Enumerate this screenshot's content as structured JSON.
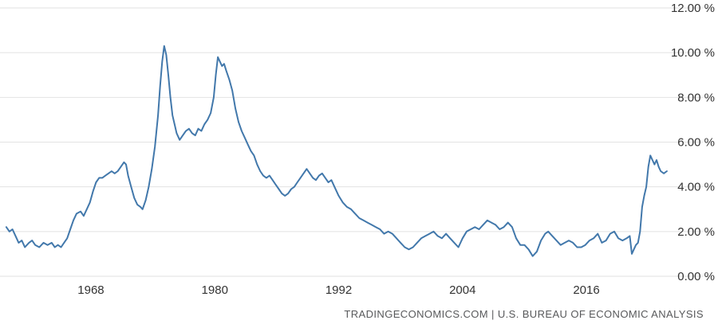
{
  "footer": {
    "source_text": "TRADINGECONOMICS.COM | U.S. BUREAU OF ECONOMIC ANALYSIS"
  },
  "colors": {
    "line": "#4278ab",
    "grid": "#e2e2e2",
    "tick_text": "#333333",
    "footer_text": "#58595b",
    "background": "#ffffff"
  },
  "chart_data": {
    "type": "line",
    "title": "",
    "xlabel": "",
    "ylabel": "",
    "grid": "horizontal",
    "legend": "none",
    "xlim": [
      1959.5,
      2024.5
    ],
    "ylim": [
      0,
      12
    ],
    "xticks": [
      1968,
      1980,
      1992,
      2004,
      2016
    ],
    "yticks": [
      0,
      2,
      4,
      6,
      8,
      10,
      12
    ],
    "ytick_labels": [
      "0.00 %",
      "2.00 %",
      "4.00 %",
      "6.00 %",
      "8.00 %",
      "10.00 %",
      "12.00 %"
    ],
    "series": [
      {
        "name": "value",
        "color": "#4278ab",
        "points": [
          [
            1959.8,
            2.2
          ],
          [
            1960.1,
            2.0
          ],
          [
            1960.4,
            2.1
          ],
          [
            1960.7,
            1.8
          ],
          [
            1961.0,
            1.5
          ],
          [
            1961.3,
            1.6
          ],
          [
            1961.6,
            1.3
          ],
          [
            1962.0,
            1.5
          ],
          [
            1962.3,
            1.6
          ],
          [
            1962.6,
            1.4
          ],
          [
            1963.0,
            1.3
          ],
          [
            1963.4,
            1.5
          ],
          [
            1963.8,
            1.4
          ],
          [
            1964.2,
            1.5
          ],
          [
            1964.5,
            1.3
          ],
          [
            1964.8,
            1.4
          ],
          [
            1965.1,
            1.3
          ],
          [
            1965.4,
            1.5
          ],
          [
            1965.7,
            1.7
          ],
          [
            1966.0,
            2.1
          ],
          [
            1966.3,
            2.5
          ],
          [
            1966.6,
            2.8
          ],
          [
            1967.0,
            2.9
          ],
          [
            1967.3,
            2.7
          ],
          [
            1967.6,
            3.0
          ],
          [
            1967.9,
            3.3
          ],
          [
            1968.2,
            3.8
          ],
          [
            1968.5,
            4.2
          ],
          [
            1968.8,
            4.4
          ],
          [
            1969.1,
            4.4
          ],
          [
            1969.4,
            4.5
          ],
          [
            1969.7,
            4.6
          ],
          [
            1970.0,
            4.7
          ],
          [
            1970.3,
            4.6
          ],
          [
            1970.6,
            4.7
          ],
          [
            1970.9,
            4.9
          ],
          [
            1971.2,
            5.1
          ],
          [
            1971.4,
            5.0
          ],
          [
            1971.6,
            4.5
          ],
          [
            1971.9,
            4.0
          ],
          [
            1972.2,
            3.5
          ],
          [
            1972.5,
            3.2
          ],
          [
            1972.8,
            3.1
          ],
          [
            1973.0,
            3.0
          ],
          [
            1973.3,
            3.4
          ],
          [
            1973.6,
            4.0
          ],
          [
            1973.9,
            4.8
          ],
          [
            1974.2,
            5.8
          ],
          [
            1974.5,
            7.2
          ],
          [
            1974.7,
            8.5
          ],
          [
            1974.9,
            9.6
          ],
          [
            1975.1,
            10.3
          ],
          [
            1975.3,
            9.9
          ],
          [
            1975.5,
            9.0
          ],
          [
            1975.7,
            8.0
          ],
          [
            1975.9,
            7.2
          ],
          [
            1976.1,
            6.8
          ],
          [
            1976.3,
            6.4
          ],
          [
            1976.6,
            6.1
          ],
          [
            1976.9,
            6.3
          ],
          [
            1977.2,
            6.5
          ],
          [
            1977.5,
            6.6
          ],
          [
            1977.8,
            6.4
          ],
          [
            1978.1,
            6.3
          ],
          [
            1978.4,
            6.6
          ],
          [
            1978.7,
            6.5
          ],
          [
            1979.0,
            6.8
          ],
          [
            1979.3,
            7.0
          ],
          [
            1979.6,
            7.3
          ],
          [
            1979.9,
            8.0
          ],
          [
            1980.1,
            9.0
          ],
          [
            1980.3,
            9.8
          ],
          [
            1980.5,
            9.6
          ],
          [
            1980.7,
            9.4
          ],
          [
            1980.9,
            9.5
          ],
          [
            1981.1,
            9.2
          ],
          [
            1981.4,
            8.8
          ],
          [
            1981.7,
            8.3
          ],
          [
            1982.0,
            7.5
          ],
          [
            1982.3,
            6.9
          ],
          [
            1982.6,
            6.5
          ],
          [
            1982.9,
            6.2
          ],
          [
            1983.2,
            5.9
          ],
          [
            1983.5,
            5.6
          ],
          [
            1983.8,
            5.4
          ],
          [
            1984.1,
            5.0
          ],
          [
            1984.4,
            4.7
          ],
          [
            1984.7,
            4.5
          ],
          [
            1985.0,
            4.4
          ],
          [
            1985.3,
            4.5
          ],
          [
            1985.6,
            4.3
          ],
          [
            1985.9,
            4.1
          ],
          [
            1986.2,
            3.9
          ],
          [
            1986.5,
            3.7
          ],
          [
            1986.8,
            3.6
          ],
          [
            1987.1,
            3.7
          ],
          [
            1987.4,
            3.9
          ],
          [
            1987.7,
            4.0
          ],
          [
            1988.0,
            4.2
          ],
          [
            1988.3,
            4.4
          ],
          [
            1988.6,
            4.6
          ],
          [
            1988.9,
            4.8
          ],
          [
            1989.2,
            4.6
          ],
          [
            1989.5,
            4.4
          ],
          [
            1989.8,
            4.3
          ],
          [
            1990.1,
            4.5
          ],
          [
            1990.4,
            4.6
          ],
          [
            1990.7,
            4.4
          ],
          [
            1991.0,
            4.2
          ],
          [
            1991.3,
            4.3
          ],
          [
            1991.6,
            4.0
          ],
          [
            1992.0,
            3.6
          ],
          [
            1992.4,
            3.3
          ],
          [
            1992.8,
            3.1
          ],
          [
            1993.2,
            3.0
          ],
          [
            1993.6,
            2.8
          ],
          [
            1994.0,
            2.6
          ],
          [
            1994.4,
            2.5
          ],
          [
            1994.8,
            2.4
          ],
          [
            1995.2,
            2.3
          ],
          [
            1995.6,
            2.2
          ],
          [
            1996.0,
            2.1
          ],
          [
            1996.4,
            1.9
          ],
          [
            1996.8,
            2.0
          ],
          [
            1997.2,
            1.9
          ],
          [
            1997.6,
            1.7
          ],
          [
            1998.0,
            1.5
          ],
          [
            1998.4,
            1.3
          ],
          [
            1998.8,
            1.2
          ],
          [
            1999.2,
            1.3
          ],
          [
            1999.6,
            1.5
          ],
          [
            2000.0,
            1.7
          ],
          [
            2000.4,
            1.8
          ],
          [
            2000.8,
            1.9
          ],
          [
            2001.2,
            2.0
          ],
          [
            2001.6,
            1.8
          ],
          [
            2002.0,
            1.7
          ],
          [
            2002.4,
            1.9
          ],
          [
            2002.8,
            1.7
          ],
          [
            2003.2,
            1.5
          ],
          [
            2003.6,
            1.3
          ],
          [
            2004.0,
            1.7
          ],
          [
            2004.4,
            2.0
          ],
          [
            2004.8,
            2.1
          ],
          [
            2005.2,
            2.2
          ],
          [
            2005.6,
            2.1
          ],
          [
            2006.0,
            2.3
          ],
          [
            2006.4,
            2.5
          ],
          [
            2006.8,
            2.4
          ],
          [
            2007.2,
            2.3
          ],
          [
            2007.6,
            2.1
          ],
          [
            2008.0,
            2.2
          ],
          [
            2008.4,
            2.4
          ],
          [
            2008.8,
            2.2
          ],
          [
            2009.2,
            1.7
          ],
          [
            2009.6,
            1.4
          ],
          [
            2010.0,
            1.4
          ],
          [
            2010.4,
            1.2
          ],
          [
            2010.8,
            0.9
          ],
          [
            2011.2,
            1.1
          ],
          [
            2011.6,
            1.6
          ],
          [
            2012.0,
            1.9
          ],
          [
            2012.3,
            2.0
          ],
          [
            2012.7,
            1.8
          ],
          [
            2013.1,
            1.6
          ],
          [
            2013.5,
            1.4
          ],
          [
            2013.9,
            1.5
          ],
          [
            2014.3,
            1.6
          ],
          [
            2014.7,
            1.5
          ],
          [
            2015.1,
            1.3
          ],
          [
            2015.5,
            1.3
          ],
          [
            2015.9,
            1.4
          ],
          [
            2016.3,
            1.6
          ],
          [
            2016.7,
            1.7
          ],
          [
            2017.1,
            1.9
          ],
          [
            2017.5,
            1.5
          ],
          [
            2017.9,
            1.6
          ],
          [
            2018.3,
            1.9
          ],
          [
            2018.7,
            2.0
          ],
          [
            2019.1,
            1.7
          ],
          [
            2019.5,
            1.6
          ],
          [
            2019.9,
            1.7
          ],
          [
            2020.2,
            1.8
          ],
          [
            2020.4,
            1.0
          ],
          [
            2020.6,
            1.2
          ],
          [
            2020.8,
            1.4
          ],
          [
            2021.0,
            1.5
          ],
          [
            2021.2,
            2.0
          ],
          [
            2021.4,
            3.1
          ],
          [
            2021.6,
            3.6
          ],
          [
            2021.8,
            4.0
          ],
          [
            2022.0,
            4.9
          ],
          [
            2022.2,
            5.4
          ],
          [
            2022.4,
            5.2
          ],
          [
            2022.6,
            5.0
          ],
          [
            2022.8,
            5.2
          ],
          [
            2023.0,
            4.9
          ],
          [
            2023.2,
            4.7
          ],
          [
            2023.5,
            4.6
          ],
          [
            2023.8,
            4.7
          ]
        ]
      }
    ]
  }
}
